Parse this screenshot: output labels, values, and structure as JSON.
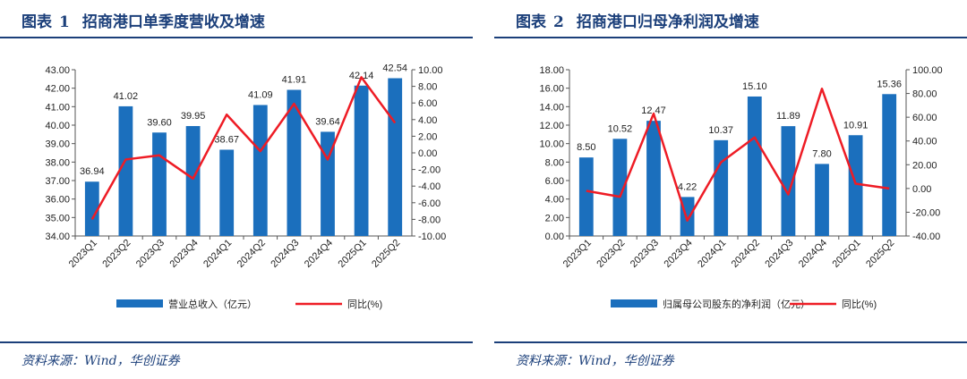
{
  "charts": [
    {
      "figure_label": "图表",
      "figure_num": "1",
      "title": "招商港口单季度营收及增速",
      "source": "资料来源：Wind，华创证券"
    },
    {
      "figure_label": "图表",
      "figure_num": "2",
      "title": "招商港口归母净利润及增速",
      "source": "资料来源：Wind，华创证券"
    }
  ],
  "colors": {
    "bar": "#1b6fbd",
    "line": "#ee1c25",
    "title": "#1b3f7a",
    "axis": "#555555"
  },
  "chart_data": [
    {
      "type": "bar",
      "categories": [
        "2023Q1",
        "2023Q2",
        "2023Q3",
        "2023Q4",
        "2024Q1",
        "2024Q2",
        "2024Q3",
        "2024Q4",
        "2025Q1",
        "2025Q2"
      ],
      "series": [
        {
          "name": "营业总收入（亿元）",
          "type": "bar",
          "axis": "left",
          "values": [
            36.94,
            41.02,
            39.6,
            39.95,
            38.67,
            41.09,
            41.91,
            39.64,
            42.14,
            42.54
          ],
          "labels": [
            "36.94",
            "41.02",
            "39.60",
            "39.95",
            "38.67",
            "41.09",
            "41.91",
            "39.64",
            "42.14",
            "42.54"
          ]
        },
        {
          "name": "同比(%)",
          "type": "line",
          "axis": "right",
          "values": [
            -8.0,
            -0.8,
            -0.3,
            -3.1,
            4.6,
            0.2,
            5.9,
            -0.8,
            9.1,
            3.6
          ]
        }
      ],
      "y_left": {
        "min": 34,
        "max": 43,
        "step": 1,
        "ticks": [
          "34.00",
          "35.00",
          "36.00",
          "37.00",
          "38.00",
          "39.00",
          "40.00",
          "41.00",
          "42.00",
          "43.00"
        ]
      },
      "y_right": {
        "min": -10,
        "max": 10,
        "step": 2,
        "ticks": [
          "-10.00",
          "-8.00",
          "-6.00",
          "-4.00",
          "-2.00",
          "0.00",
          "2.00",
          "4.00",
          "6.00",
          "8.00",
          "10.00"
        ]
      },
      "legend_position": "bottom",
      "grid": false
    },
    {
      "type": "bar",
      "categories": [
        "2023Q1",
        "2023Q2",
        "2023Q3",
        "2023Q4",
        "2024Q1",
        "2024Q2",
        "2024Q3",
        "2024Q4",
        "2025Q1",
        "2025Q2"
      ],
      "series": [
        {
          "name": "归属母公司股东的净利润（亿元）",
          "type": "bar",
          "axis": "left",
          "values": [
            8.5,
            10.52,
            12.47,
            4.22,
            10.37,
            15.1,
            11.89,
            7.8,
            10.91,
            15.36
          ],
          "labels": [
            "8.50",
            "10.52",
            "12.47",
            "4.22",
            "10.37",
            "15.10",
            "11.89",
            "7.80",
            "10.91",
            "15.36"
          ]
        },
        {
          "name": "同比(%)",
          "type": "line",
          "axis": "right",
          "values": [
            -2,
            -7,
            63,
            -27,
            22,
            43,
            -5,
            84,
            4,
            0
          ]
        }
      ],
      "y_left": {
        "min": 0,
        "max": 18,
        "step": 2,
        "ticks": [
          "0.00",
          "2.00",
          "4.00",
          "6.00",
          "8.00",
          "10.00",
          "12.00",
          "14.00",
          "16.00",
          "18.00"
        ]
      },
      "y_right": {
        "min": -40,
        "max": 100,
        "step": 20,
        "ticks": [
          "-40.00",
          "-20.00",
          "0.00",
          "20.00",
          "40.00",
          "60.00",
          "80.00",
          "100.00"
        ]
      },
      "legend_position": "bottom",
      "grid": false
    }
  ]
}
